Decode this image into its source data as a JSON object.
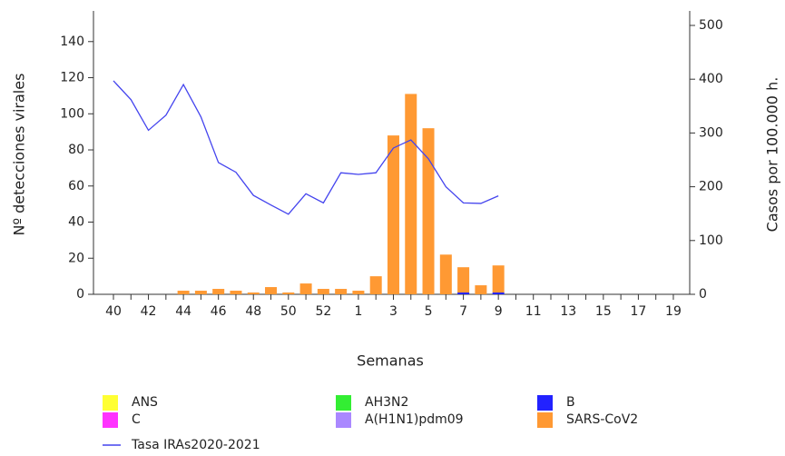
{
  "chart_data": {
    "type": "bar",
    "x_label": "Semanas",
    "y_label": "Nº detecciones virales",
    "y2_label": "Casos por 100.000 h.",
    "categories": [
      "40",
      null,
      "42",
      null,
      "44",
      null,
      "46",
      null,
      "48",
      null,
      "50",
      null,
      "52",
      null,
      "1",
      null,
      "3",
      null,
      "5",
      null,
      "7",
      null,
      "9",
      null,
      "11",
      null,
      "13",
      null,
      "15",
      null,
      "17",
      null,
      "19"
    ],
    "ylim": [
      0,
      157
    ],
    "yticks": [
      0,
      20,
      40,
      60,
      80,
      100,
      120,
      140
    ],
    "y2lim": [
      0,
      527
    ],
    "y2ticks": [
      0,
      100,
      200,
      300,
      400,
      500
    ],
    "stacked": true,
    "series": [
      {
        "name": "ANS",
        "color": "#ffff33",
        "values": [
          0,
          0,
          0,
          0,
          0,
          0,
          0,
          0,
          0,
          0,
          0,
          0,
          0,
          0,
          0,
          0,
          0,
          0,
          0,
          0,
          0,
          0,
          0,
          null,
          null,
          null,
          null,
          null,
          null,
          null,
          null,
          null,
          null
        ]
      },
      {
        "name": "AH3N2",
        "color": "#33ee33",
        "values": [
          0,
          0,
          0,
          0,
          0,
          0,
          0,
          0,
          0,
          0,
          0,
          0,
          0,
          0,
          0,
          0,
          0,
          0,
          0,
          0,
          0,
          0,
          0,
          null,
          null,
          null,
          null,
          null,
          null,
          null,
          null,
          null,
          null
        ]
      },
      {
        "name": "B",
        "color": "#2222ff",
        "values": [
          0,
          0,
          0,
          0,
          0,
          0,
          0,
          0,
          0,
          0,
          0,
          0,
          0,
          0,
          0,
          0,
          0,
          0,
          0,
          0,
          1,
          0,
          1,
          null,
          null,
          null,
          null,
          null,
          null,
          null,
          null,
          null,
          null
        ]
      },
      {
        "name": "C",
        "color": "#ff33ff",
        "values": [
          0,
          0,
          0,
          0,
          0,
          0,
          0,
          0,
          0,
          0,
          0,
          0,
          0,
          0,
          0,
          0,
          0,
          0,
          0,
          0,
          0,
          0,
          0,
          null,
          null,
          null,
          null,
          null,
          null,
          null,
          null,
          null,
          null
        ]
      },
      {
        "name": "A(H1N1)pdm09",
        "color": "#aa88ff",
        "values": [
          0,
          0,
          0,
          0,
          0,
          0,
          0,
          0,
          0,
          0,
          0,
          0,
          0,
          0,
          0,
          0,
          0,
          0,
          0,
          0,
          0,
          0,
          0,
          null,
          null,
          null,
          null,
          null,
          null,
          null,
          null,
          null,
          null
        ]
      },
      {
        "name": "SARS-CoV2",
        "color": "#ff9933",
        "values": [
          0,
          0,
          0,
          0,
          2,
          2,
          3,
          2,
          1,
          4,
          1,
          6,
          3,
          3,
          2,
          10,
          88,
          111,
          92,
          22,
          14,
          5,
          15,
          null,
          null,
          null,
          null,
          null,
          null,
          null,
          null,
          null,
          null
        ]
      },
      {
        "name": "Tasa IRAs2020-2021",
        "color": "#4444ee",
        "type": "line",
        "axis": "y2",
        "values": [
          397,
          362,
          305,
          333,
          390,
          330,
          245,
          227,
          184,
          166,
          149,
          187,
          170,
          226,
          223,
          226,
          272,
          287,
          252,
          200,
          170,
          169,
          183,
          null,
          null,
          null,
          null,
          null,
          null,
          null,
          null,
          null,
          null
        ]
      }
    ]
  }
}
